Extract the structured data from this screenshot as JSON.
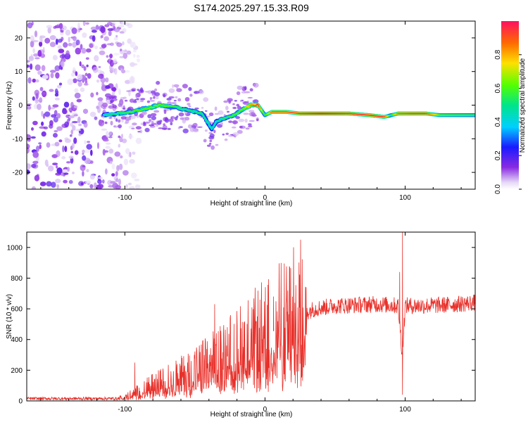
{
  "title": "S174.2025.297.15.33.R09",
  "chart_data": [
    {
      "type": "heatmap",
      "name": "spectrogram",
      "xlabel": "Height of straight line (km)",
      "ylabel": "Frequency (Hz)",
      "xlim": [
        -170,
        150
      ],
      "ylim": [
        -25,
        25
      ],
      "xticks": [
        -100,
        0,
        100
      ],
      "yticks": [
        -20,
        -10,
        0,
        10,
        20
      ],
      "colorbar": {
        "label": "Normalized spectral amplitude",
        "range": [
          0,
          1
        ],
        "ticks": [
          0.0,
          0.2,
          0.4,
          0.6,
          0.8
        ]
      },
      "ridge": {
        "x": [
          -115,
          -105,
          -95,
          -85,
          -75,
          -65,
          -55,
          -45,
          -38,
          -35,
          -30,
          -22,
          -15,
          -10,
          -5,
          0,
          5,
          15,
          25,
          40,
          60,
          75,
          85,
          90,
          95,
          105,
          115,
          125,
          150
        ],
        "y": [
          -3,
          -2.5,
          -2,
          -1,
          0,
          -0.5,
          -1.5,
          -2.5,
          -7,
          -5,
          -4,
          -3,
          -1,
          0,
          0,
          -3,
          -2,
          -2,
          -2.5,
          -2.5,
          -2.5,
          -3,
          -3.5,
          -3,
          -2.5,
          -2.5,
          -2.5,
          -3,
          -3
        ],
        "amplitude": [
          0.45,
          0.5,
          0.55,
          0.6,
          0.6,
          0.55,
          0.5,
          0.5,
          0.45,
          0.45,
          0.5,
          0.55,
          0.6,
          0.8,
          0.9,
          0.5,
          0.85,
          0.85,
          0.9,
          0.95,
          0.9,
          0.9,
          0.9,
          0.5,
          0.85,
          0.9,
          0.9,
          0.6,
          0.55
        ]
      },
      "noise_region_x": [
        -170,
        -115
      ]
    },
    {
      "type": "line",
      "name": "snr",
      "xlabel": "Height of straight line (km)",
      "ylabel": "SNR (10 * v/v)",
      "xlim": [
        -170,
        150
      ],
      "ylim": [
        0,
        1100
      ],
      "xticks": [
        -100,
        0,
        100
      ],
      "yticks": [
        0,
        200,
        400,
        600,
        800,
        1000
      ],
      "color": "#e8302a",
      "envelope": {
        "x": [
          -170,
          -105,
          -95,
          -85,
          -75,
          -65,
          -55,
          -45,
          -35,
          -25,
          -15,
          -5,
          5,
          15,
          25,
          35,
          50,
          80,
          95,
          98,
          100,
          110,
          130,
          150
        ],
        "y": [
          15,
          15,
          40,
          80,
          110,
          140,
          170,
          210,
          250,
          300,
          350,
          400,
          450,
          500,
          560,
          600,
          620,
          630,
          620,
          300,
          620,
          620,
          625,
          640
        ]
      },
      "spikes": [
        {
          "x": -93,
          "y": 250
        },
        {
          "x": -36,
          "y": 630
        },
        {
          "x": -27,
          "y": 480
        },
        {
          "x": 6,
          "y": 680
        },
        {
          "x": 96,
          "y": 840
        },
        {
          "x": 98,
          "y": 1100
        },
        {
          "x": 98,
          "y": 40
        },
        {
          "x": 118,
          "y": 610
        }
      ]
    }
  ]
}
